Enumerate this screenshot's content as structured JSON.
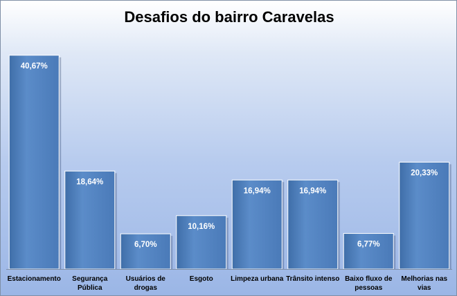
{
  "chart_data": {
    "type": "bar",
    "title": "Desafios do bairro Caravelas",
    "categories": [
      "Estacionamento",
      "Segurança Pública",
      "Usuários de drogas",
      "Esgoto",
      "Limpeza urbana",
      "Trânsito intenso",
      "Baixo fluxo de pessoas",
      "Melhorias nas vias"
    ],
    "category_lines": [
      [
        "Estacionamento"
      ],
      [
        "Segurança",
        "Pública"
      ],
      [
        "Usuários de",
        "drogas"
      ],
      [
        "Esgoto"
      ],
      [
        "Limpeza urbana"
      ],
      [
        "Trânsito intenso"
      ],
      [
        "Baixo fluxo de",
        "pessoas"
      ],
      [
        "Melhorias nas",
        "vias"
      ]
    ],
    "values": [
      40.67,
      18.64,
      6.7,
      10.16,
      16.94,
      16.94,
      6.77,
      20.33
    ],
    "value_labels": [
      "40,67%",
      "18,64%",
      "6,70%",
      "10,16%",
      "16,94%",
      "16,94%",
      "6,77%",
      "20,33%"
    ],
    "xlabel": "",
    "ylabel": "",
    "ylim": [
      0,
      45
    ],
    "grid": false,
    "legend": "none",
    "bar_color": "#4f81bd"
  }
}
